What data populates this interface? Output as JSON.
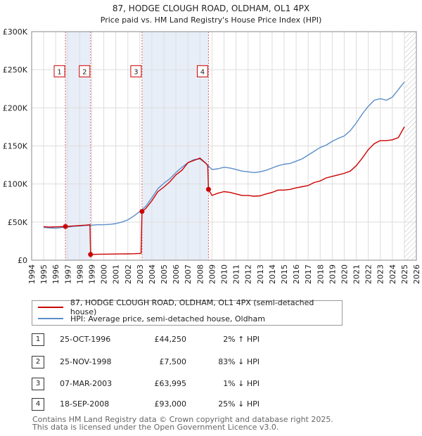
{
  "chart_data": {
    "type": "line",
    "title": "87, HODGE CLOUGH ROAD, OLDHAM, OL1 4PX",
    "subtitle": "Price paid vs. HM Land Registry's House Price Index (HPI)",
    "xlim": [
      1994,
      2026
    ],
    "ylim": [
      0,
      300000
    ],
    "yticks": [
      0,
      50000,
      100000,
      150000,
      200000,
      250000,
      300000
    ],
    "ytick_labels": [
      "£0",
      "£50K",
      "£100K",
      "£150K",
      "£200K",
      "£250K",
      "£300K"
    ],
    "xticks": [
      1994,
      1995,
      1996,
      1997,
      1998,
      1999,
      2000,
      2001,
      2002,
      2003,
      2004,
      2005,
      2006,
      2007,
      2008,
      2009,
      2010,
      2011,
      2012,
      2013,
      2014,
      2015,
      2016,
      2017,
      2018,
      2019,
      2020,
      2021,
      2022,
      2023,
      2024,
      2025,
      2026
    ],
    "xtick_labels": [
      "1994",
      "1995",
      "1996",
      "1997",
      "1998",
      "1999",
      "2000",
      "2001",
      "2002",
      "2003",
      "2004",
      "2005",
      "2006",
      "2007",
      "2008",
      "2009",
      "2010",
      "2011",
      "2012",
      "2013",
      "2014",
      "2015",
      "2016",
      "2017",
      "2018",
      "2019",
      "2020",
      "2021",
      "2022",
      "2023",
      "2024",
      "2025",
      "2026"
    ],
    "grid": true,
    "data_end": 2025.0,
    "sale_periods": [
      [
        1996.81,
        1998.9
      ],
      [
        2003.18,
        2008.71
      ]
    ],
    "series": [
      {
        "name": "87, HODGE CLOUGH ROAD, OLDHAM, OL1 4PX (semi-detached house)",
        "color": "#cc0000",
        "x": [
          1995.0,
          1995.5,
          1996.0,
          1996.5,
          1996.81,
          1997.0,
          1997.5,
          1998.0,
          1998.5,
          1998.85,
          1998.9,
          1999.5,
          2000.0,
          2000.5,
          2001.0,
          2001.5,
          2002.0,
          2002.5,
          2003.1,
          2003.18,
          2003.5,
          2004.0,
          2004.5,
          2005.0,
          2005.5,
          2006.0,
          2006.5,
          2007.0,
          2007.5,
          2008.0,
          2008.5,
          2008.65,
          2008.71,
          2009.0,
          2009.5,
          2010.0,
          2010.5,
          2011.0,
          2011.5,
          2012.0,
          2012.5,
          2013.0,
          2013.5,
          2014.0,
          2014.5,
          2015.0,
          2015.5,
          2016.0,
          2016.5,
          2017.0,
          2017.5,
          2018.0,
          2018.5,
          2019.0,
          2019.5,
          2020.0,
          2020.5,
          2021.0,
          2021.5,
          2022.0,
          2022.5,
          2023.0,
          2023.5,
          2024.0,
          2024.5,
          2025.0
        ],
        "values": [
          44000,
          43500,
          43800,
          44000,
          44250,
          44500,
          45000,
          45500,
          46000,
          46500,
          7500,
          7800,
          7900,
          8000,
          8100,
          8200,
          8300,
          8500,
          9000,
          63995,
          68000,
          78000,
          90000,
          96000,
          103000,
          112000,
          118000,
          128000,
          131000,
          134000,
          127000,
          124000,
          93000,
          85000,
          88000,
          90000,
          89000,
          87000,
          85000,
          85000,
          84000,
          84500,
          87000,
          89000,
          92000,
          92000,
          93000,
          95000,
          96500,
          98000,
          102000,
          104000,
          108000,
          110000,
          112000,
          114000,
          117000,
          124000,
          134000,
          145000,
          153000,
          157000,
          157000,
          158000,
          161000,
          175000
        ]
      },
      {
        "name": "HPI: Average price, semi-detached house, Oldham",
        "color": "#5b8ec9",
        "x": [
          1995.0,
          1995.5,
          1996.0,
          1996.5,
          1997.0,
          1997.5,
          1998.0,
          1998.5,
          1999.0,
          1999.5,
          2000.0,
          2000.5,
          2001.0,
          2001.5,
          2002.0,
          2002.5,
          2003.0,
          2003.5,
          2004.0,
          2004.5,
          2005.0,
          2005.5,
          2006.0,
          2006.5,
          2007.0,
          2007.5,
          2008.0,
          2008.5,
          2009.0,
          2009.5,
          2010.0,
          2010.5,
          2011.0,
          2011.5,
          2012.0,
          2012.5,
          2013.0,
          2013.5,
          2014.0,
          2014.5,
          2015.0,
          2015.5,
          2016.0,
          2016.5,
          2017.0,
          2017.5,
          2018.0,
          2018.5,
          2019.0,
          2019.5,
          2020.0,
          2020.5,
          2021.0,
          2021.5,
          2022.0,
          2022.5,
          2023.0,
          2023.5,
          2024.0,
          2024.5,
          2025.0
        ],
        "values": [
          43000,
          42500,
          42000,
          42800,
          43500,
          44500,
          45000,
          45500,
          46000,
          46500,
          46500,
          47000,
          48000,
          50000,
          53000,
          58000,
          64000,
          71000,
          82000,
          94000,
          101000,
          107000,
          115000,
          122000,
          128000,
          132000,
          133000,
          127000,
          119000,
          120000,
          122000,
          121000,
          119000,
          117000,
          116000,
          115000,
          116000,
          118000,
          121000,
          124000,
          126000,
          127000,
          130000,
          133000,
          138000,
          143000,
          148000,
          151000,
          156000,
          160000,
          163000,
          170000,
          180000,
          192000,
          202000,
          210000,
          212000,
          210000,
          214000,
          224000,
          234000
        ]
      }
    ],
    "markers": [
      {
        "label": "1",
        "x": 1996.81,
        "value": 44250
      },
      {
        "label": "2",
        "x": 1998.9,
        "value": 7500
      },
      {
        "label": "3",
        "x": 2003.18,
        "value": 63995
      },
      {
        "label": "4",
        "x": 2008.71,
        "value": 93000
      }
    ],
    "marker_label_value": 248000
  },
  "legend": {
    "items": [
      {
        "label": "87, HODGE CLOUGH ROAD, OLDHAM, OL1 4PX (semi-detached house)",
        "color": "#cc0000"
      },
      {
        "label": "HPI: Average price, semi-detached house, Oldham",
        "color": "#5b8ec9"
      }
    ]
  },
  "sales": [
    {
      "num": "1",
      "date": "25-OCT-1996",
      "price": "£44,250",
      "hpi": "2% ↑ HPI"
    },
    {
      "num": "2",
      "date": "25-NOV-1998",
      "price": "£7,500",
      "hpi": "83% ↓ HPI"
    },
    {
      "num": "3",
      "date": "07-MAR-2003",
      "price": "£63,995",
      "hpi": "1% ↓ HPI"
    },
    {
      "num": "4",
      "date": "18-SEP-2008",
      "price": "£93,000",
      "hpi": "25% ↓ HPI"
    }
  ],
  "footer": {
    "line1": "Contains HM Land Registry data © Crown copyright and database right 2025.",
    "line2": "This data is licensed under the Open Government Licence v3.0."
  }
}
